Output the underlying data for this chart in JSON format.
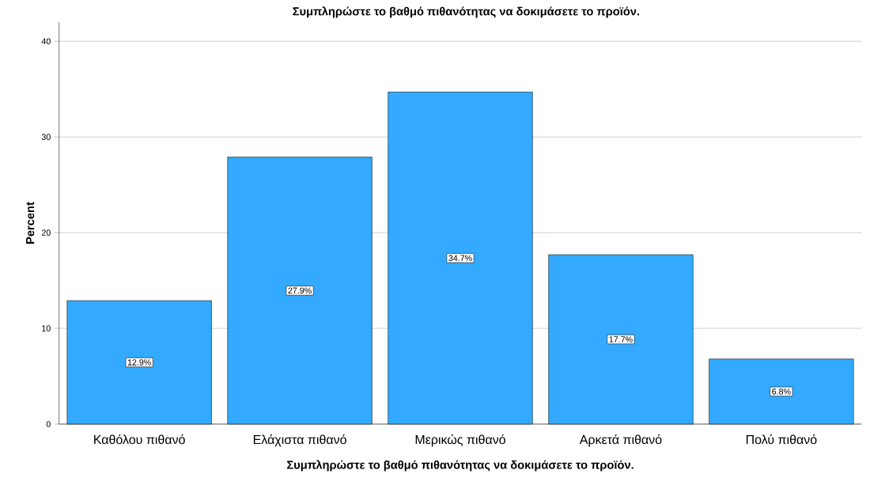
{
  "chart_data": {
    "type": "bar",
    "title": "Συμπληρώστε το βαθμό πιθανότητας να δοκιμάσετε το προϊόν.",
    "xlabel": "Συμπληρώστε το βαθμό πιθανότητας να δοκιμάσετε το προϊόν.",
    "ylabel": "Percent",
    "categories": [
      "Καθόλου πιθανό",
      "Ελάχιστα πιθανό",
      "Μερικώς πιθανό",
      "Αρκετά πιθανό",
      "Πολύ πιθανό"
    ],
    "values": [
      12.9,
      27.9,
      34.7,
      17.7,
      6.8
    ],
    "value_labels": [
      "12.9%",
      "27.9%",
      "34.7%",
      "17.7%",
      "6.8%"
    ],
    "color": "#33aaff",
    "ylim": [
      0,
      42
    ],
    "yticks": [
      0,
      10,
      20,
      30,
      40
    ],
    "grid": "y"
  }
}
